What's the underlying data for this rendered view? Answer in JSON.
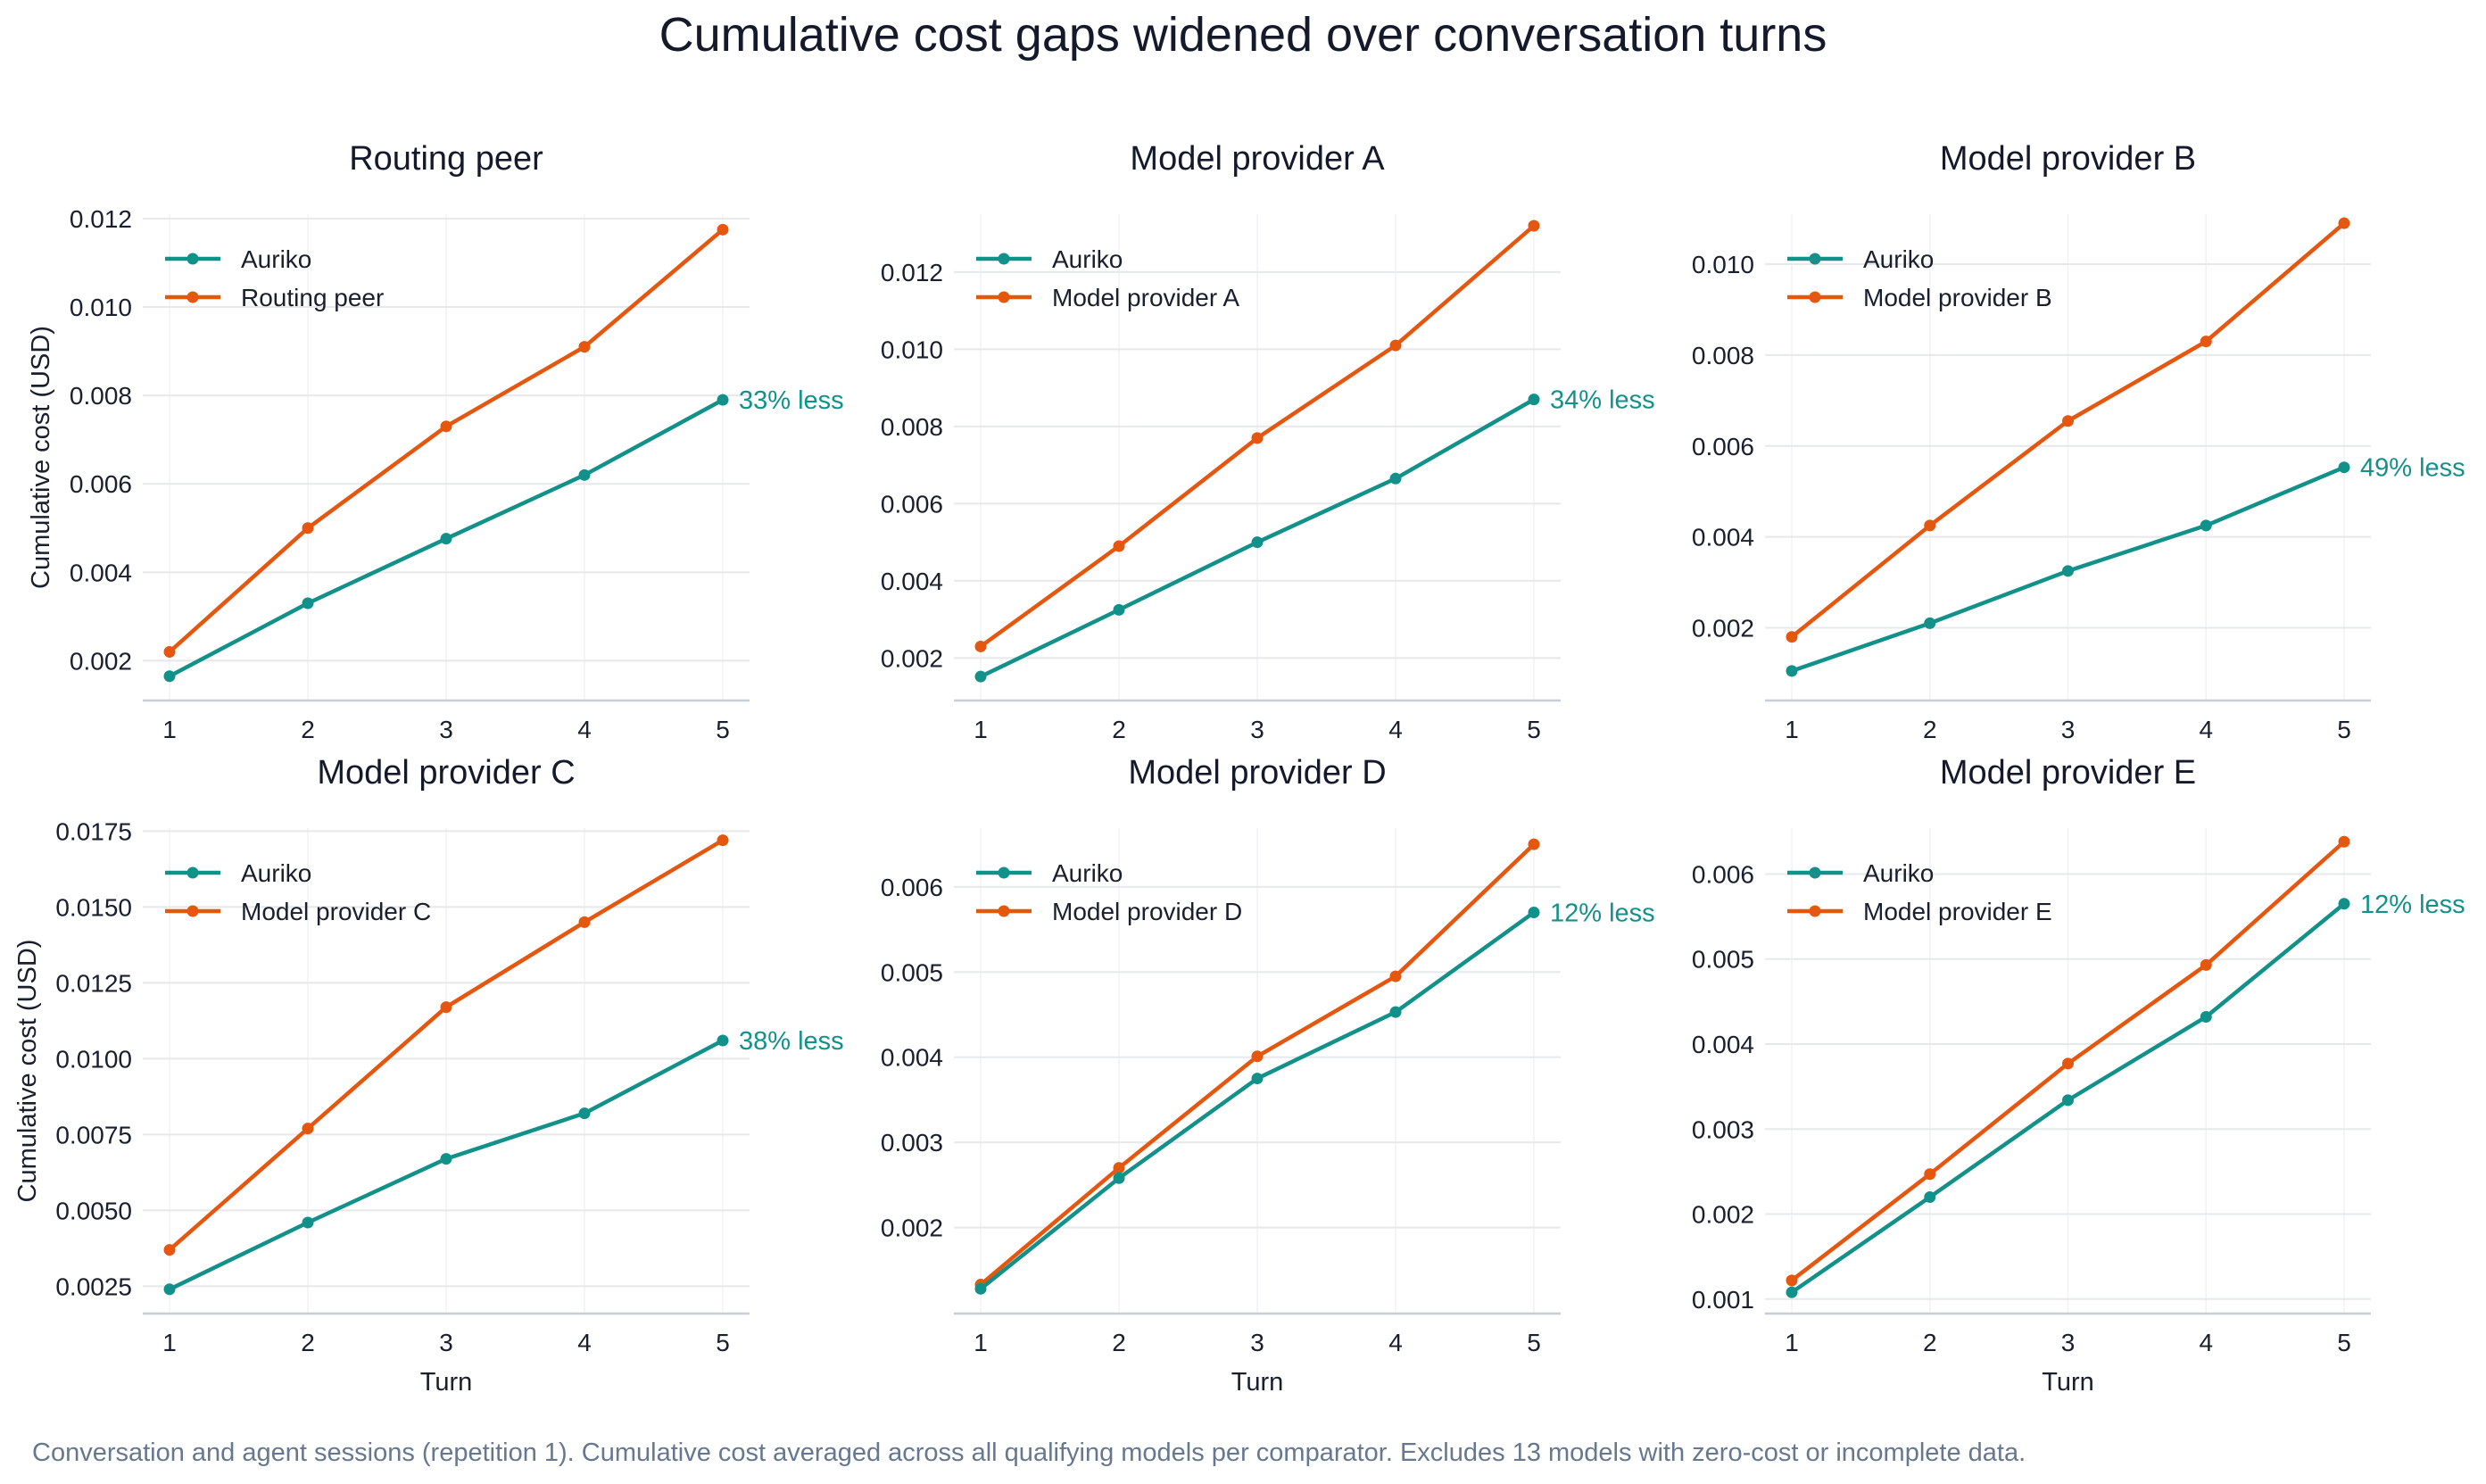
{
  "figure": {
    "title": "Cumulative cost gaps widened over conversation turns",
    "footnote": "Conversation and agent sessions (repetition 1). Cumulative cost averaged across all qualifying models per comparator. Excludes 13 models with zero-cost or incomplete data."
  },
  "colors": {
    "auriko": "#12918a",
    "comparator": "#e5560f",
    "grid": "#e6e8ec",
    "axis": "#c9ced6",
    "text": "#1a1f2e"
  },
  "chart_data": [
    {
      "type": "line",
      "title": "Routing peer",
      "xlabel": "",
      "ylabel": "Cumulative cost (USD)",
      "x": [
        1,
        2,
        3,
        4,
        5
      ],
      "xticks": [
        "1",
        "2",
        "3",
        "4",
        "5"
      ],
      "ylim": [
        0.0011,
        0.0121
      ],
      "yticks": [
        "0.002",
        "0.004",
        "0.006",
        "0.008",
        "0.010",
        "0.012"
      ],
      "ytick_values": [
        0.002,
        0.004,
        0.006,
        0.008,
        0.01,
        0.012
      ],
      "series": [
        {
          "name": "Auriko",
          "values": [
            0.00165,
            0.0033,
            0.00476,
            0.0062,
            0.0079
          ]
        },
        {
          "name": "Routing peer",
          "values": [
            0.0022,
            0.005,
            0.0073,
            0.0091,
            0.01175
          ]
        }
      ],
      "annotation": "33% less",
      "legend": "top-left",
      "grid": true
    },
    {
      "type": "line",
      "title": "Model provider A",
      "xlabel": "",
      "ylabel": "",
      "x": [
        1,
        2,
        3,
        4,
        5
      ],
      "xticks": [
        "1",
        "2",
        "3",
        "4",
        "5"
      ],
      "ylim": [
        0.0009,
        0.0135
      ],
      "yticks": [
        "0.002",
        "0.004",
        "0.006",
        "0.008",
        "0.010",
        "0.012"
      ],
      "ytick_values": [
        0.002,
        0.004,
        0.006,
        0.008,
        0.01,
        0.012
      ],
      "series": [
        {
          "name": "Auriko",
          "values": [
            0.00152,
            0.00325,
            0.005,
            0.00665,
            0.0087
          ]
        },
        {
          "name": "Model provider A",
          "values": [
            0.0023,
            0.0049,
            0.0077,
            0.0101,
            0.0132
          ]
        }
      ],
      "annotation": "34% less",
      "legend": "top-left",
      "grid": true
    },
    {
      "type": "line",
      "title": "Model provider B",
      "xlabel": "",
      "ylabel": "",
      "x": [
        1,
        2,
        3,
        4,
        5
      ],
      "xticks": [
        "1",
        "2",
        "3",
        "4",
        "5"
      ],
      "ylim": [
        0.0004,
        0.0111
      ],
      "yticks": [
        "0.002",
        "0.004",
        "0.006",
        "0.008",
        "0.010"
      ],
      "ytick_values": [
        0.002,
        0.004,
        0.006,
        0.008,
        0.01
      ],
      "series": [
        {
          "name": "Auriko",
          "values": [
            0.00105,
            0.0021,
            0.00325,
            0.00425,
            0.00553
          ]
        },
        {
          "name": "Model provider B",
          "values": [
            0.0018,
            0.00425,
            0.00655,
            0.0083,
            0.0109
          ]
        }
      ],
      "annotation": "49% less",
      "legend": "top-left",
      "grid": true
    },
    {
      "type": "line",
      "title": "Model provider C",
      "xlabel": "Turn",
      "ylabel": "Cumulative cost (USD)",
      "x": [
        1,
        2,
        3,
        4,
        5
      ],
      "xticks": [
        "1",
        "2",
        "3",
        "4",
        "5"
      ],
      "ylim": [
        0.0016,
        0.0176
      ],
      "yticks": [
        "0.0025",
        "0.0050",
        "0.0075",
        "0.0100",
        "0.0125",
        "0.0150",
        "0.0175"
      ],
      "ytick_values": [
        0.0025,
        0.005,
        0.0075,
        0.01,
        0.0125,
        0.015,
        0.0175
      ],
      "series": [
        {
          "name": "Auriko",
          "values": [
            0.0024,
            0.0046,
            0.0067,
            0.0082,
            0.0106
          ]
        },
        {
          "name": "Model provider C",
          "values": [
            0.0037,
            0.0077,
            0.0117,
            0.0145,
            0.0172
          ]
        }
      ],
      "annotation": "38% less",
      "legend": "top-left",
      "grid": true
    },
    {
      "type": "line",
      "title": "Model provider D",
      "xlabel": "Turn",
      "ylabel": "",
      "x": [
        1,
        2,
        3,
        4,
        5
      ],
      "xticks": [
        "1",
        "2",
        "3",
        "4",
        "5"
      ],
      "ylim": [
        0.00099,
        0.00669
      ],
      "yticks": [
        "0.002",
        "0.003",
        "0.004",
        "0.005",
        "0.006"
      ],
      "ytick_values": [
        0.002,
        0.003,
        0.004,
        0.005,
        0.006
      ],
      "series": [
        {
          "name": "Auriko",
          "values": [
            0.00128,
            0.00258,
            0.00375,
            0.00453,
            0.0057
          ]
        },
        {
          "name": "Model provider D",
          "values": [
            0.00133,
            0.0027,
            0.00401,
            0.00495,
            0.0065
          ]
        }
      ],
      "annotation": "12% less",
      "legend": "top-left",
      "grid": true
    },
    {
      "type": "line",
      "title": "Model provider E",
      "xlabel": "Turn",
      "ylabel": "",
      "x": [
        1,
        2,
        3,
        4,
        5
      ],
      "xticks": [
        "1",
        "2",
        "3",
        "4",
        "5"
      ],
      "ylim": [
        0.00083,
        0.00654
      ],
      "yticks": [
        "0.001",
        "0.002",
        "0.003",
        "0.004",
        "0.005",
        "0.006"
      ],
      "ytick_values": [
        0.001,
        0.002,
        0.003,
        0.004,
        0.005,
        0.006
      ],
      "series": [
        {
          "name": "Auriko",
          "values": [
            0.00108,
            0.0022,
            0.00334,
            0.00432,
            0.00565
          ]
        },
        {
          "name": "Model provider E",
          "values": [
            0.00122,
            0.00247,
            0.00377,
            0.00493,
            0.00638
          ]
        }
      ],
      "annotation": "12% less",
      "legend": "top-left",
      "grid": true
    }
  ]
}
